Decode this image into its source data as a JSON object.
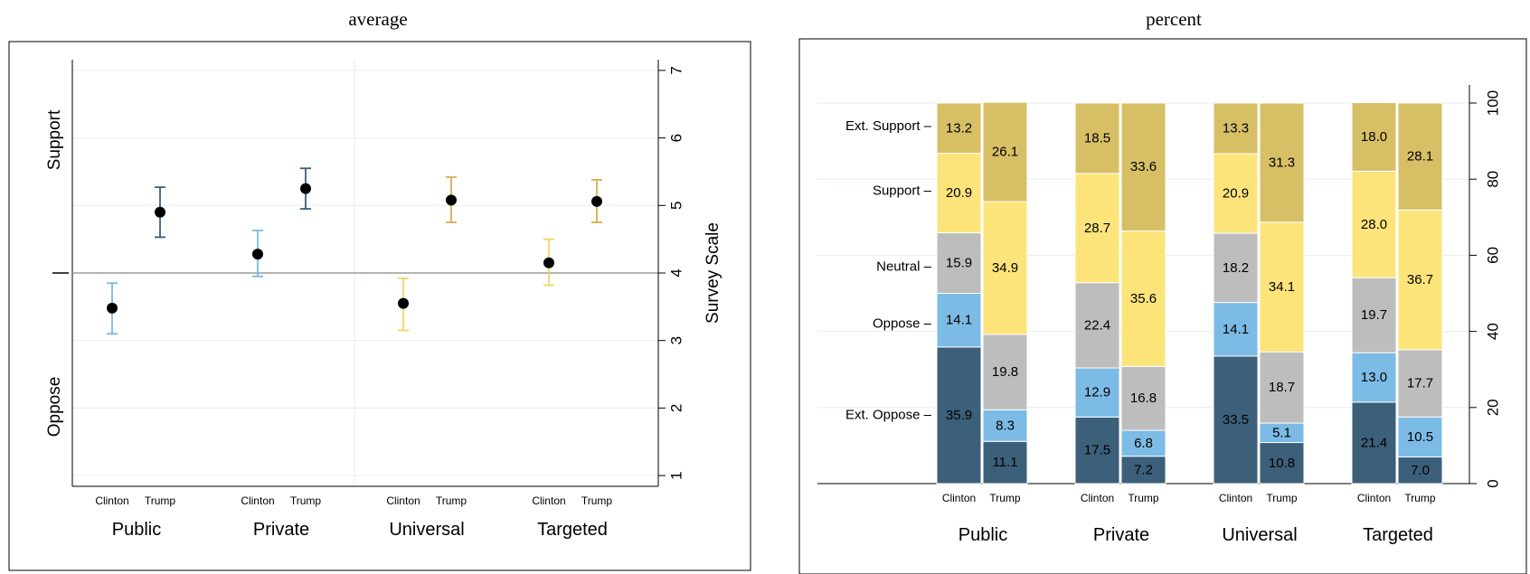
{
  "chart_data": [
    {
      "type": "scatter",
      "subtype": "error-bar",
      "title": "average",
      "ylabel": "Survey Scale",
      "ylim": [
        0.5,
        7.2
      ],
      "yticks": [
        1,
        2,
        3,
        4,
        5,
        6,
        7
      ],
      "left_axis_labels": [
        "Support",
        "Oppose"
      ],
      "groups": [
        "Public",
        "Private",
        "Universal",
        "Targeted"
      ],
      "candidates": [
        "Clinton",
        "Trump"
      ],
      "reference_line": 4,
      "colors": {
        "Public-Clinton": "#7ab9e6",
        "Public-Trump": "#3a5f7c",
        "Private-Clinton": "#7ab9e6",
        "Private-Trump": "#3a5f7c",
        "Universal-Clinton": "#f0d566",
        "Universal-Trump": "#d4b04e",
        "Targeted-Clinton": "#f0d566",
        "Targeted-Trump": "#d4b04e",
        "point": "#000000",
        "refline": "#9a9a9a",
        "grid": "#e6eef2"
      },
      "points": [
        {
          "group": "Public",
          "candidate": "Clinton",
          "mean": 3.48,
          "lo": 3.1,
          "hi": 3.85
        },
        {
          "group": "Public",
          "candidate": "Trump",
          "mean": 4.9,
          "lo": 4.53,
          "hi": 5.27
        },
        {
          "group": "Private",
          "candidate": "Clinton",
          "mean": 4.28,
          "lo": 3.95,
          "hi": 4.63
        },
        {
          "group": "Private",
          "candidate": "Trump",
          "mean": 5.25,
          "lo": 4.95,
          "hi": 5.55
        },
        {
          "group": "Universal",
          "candidate": "Clinton",
          "mean": 3.55,
          "lo": 3.15,
          "hi": 3.92
        },
        {
          "group": "Universal",
          "candidate": "Trump",
          "mean": 5.08,
          "lo": 4.75,
          "hi": 5.42
        },
        {
          "group": "Targeted",
          "candidate": "Clinton",
          "mean": 4.15,
          "lo": 3.82,
          "hi": 4.5
        },
        {
          "group": "Targeted",
          "candidate": "Trump",
          "mean": 5.06,
          "lo": 4.75,
          "hi": 5.38
        }
      ]
    },
    {
      "type": "bar",
      "subtype": "stacked-100",
      "title": "percent",
      "ylim": [
        0,
        100
      ],
      "yticks": [
        0,
        20,
        40,
        60,
        80,
        100
      ],
      "groups": [
        "Public",
        "Private",
        "Universal",
        "Targeted"
      ],
      "candidates": [
        "Clinton",
        "Trump"
      ],
      "categories": [
        "Ext. Oppose",
        "Oppose",
        "Neutral",
        "Support",
        "Ext. Support"
      ],
      "category_labels": [
        "Ext. Oppose –",
        "Oppose –",
        "Neutral –",
        "Support –",
        "Ext. Support –"
      ],
      "category_label_positions": [
        18,
        42,
        57,
        77,
        94
      ],
      "colors": {
        "Ext. Oppose": "#3c5f7a",
        "Oppose": "#7cbbe5",
        "Neutral": "#bdbdbd",
        "Support": "#fde47a",
        "Ext. Support": "#d7bf66",
        "grid": "#e6eef2"
      },
      "bars": [
        {
          "group": "Public",
          "candidate": "Clinton",
          "values": [
            35.9,
            14.1,
            15.9,
            20.9,
            13.2
          ]
        },
        {
          "group": "Public",
          "candidate": "Trump",
          "values": [
            11.1,
            8.3,
            19.8,
            34.9,
            26.1
          ]
        },
        {
          "group": "Private",
          "candidate": "Clinton",
          "values": [
            17.5,
            12.9,
            22.4,
            28.7,
            18.5
          ]
        },
        {
          "group": "Private",
          "candidate": "Trump",
          "values": [
            7.2,
            6.8,
            16.8,
            35.6,
            33.6
          ]
        },
        {
          "group": "Universal",
          "candidate": "Clinton",
          "values": [
            33.5,
            14.1,
            18.2,
            20.9,
            13.3
          ]
        },
        {
          "group": "Universal",
          "candidate": "Trump",
          "values": [
            10.8,
            5.1,
            18.7,
            34.1,
            31.3
          ]
        },
        {
          "group": "Targeted",
          "candidate": "Clinton",
          "values": [
            21.4,
            13.0,
            19.7,
            28.0,
            18.0
          ]
        },
        {
          "group": "Targeted",
          "candidate": "Trump",
          "values": [
            7.0,
            10.5,
            17.7,
            36.7,
            28.1
          ]
        }
      ]
    }
  ]
}
